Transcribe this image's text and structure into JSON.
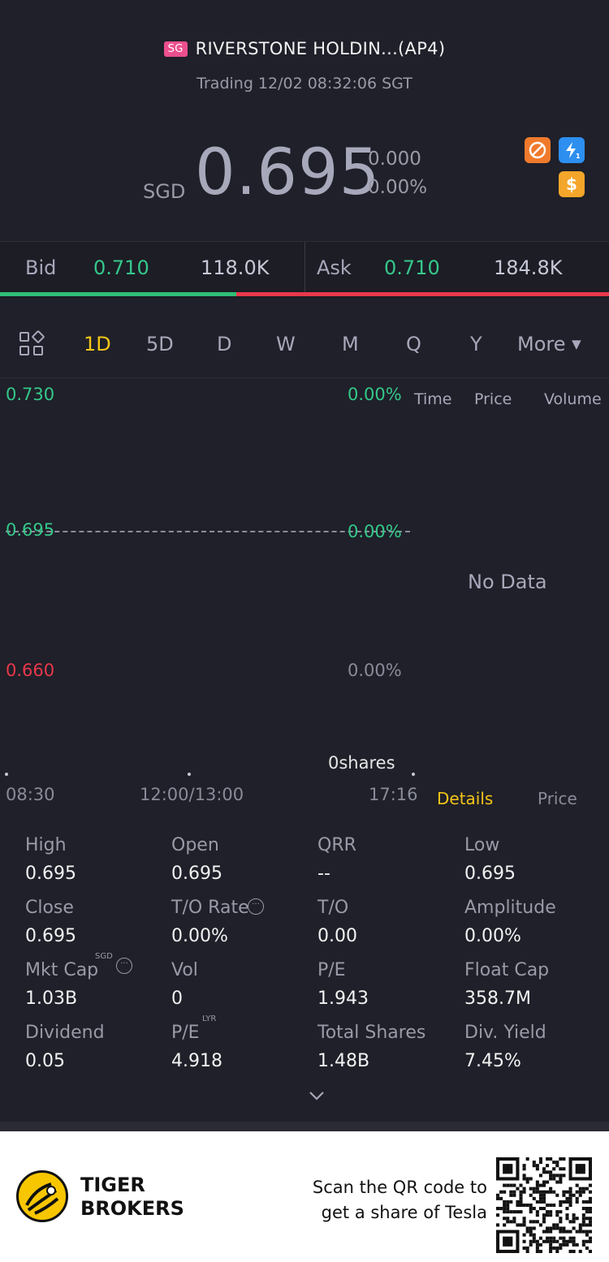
{
  "header": {
    "market_badge": "SG",
    "stock_name": "RIVERSTONE HOLDIN...(AP4)",
    "status": "Trading 12/02 08:32:06 SGT",
    "currency": "SGD",
    "price": "0.695",
    "change": "0.000",
    "change_pct": "0.00%",
    "icon_names": [
      "no-short-icon",
      "lightning-level1-icon",
      "dollar-icon"
    ],
    "colors": {
      "price": "#a7a8ba",
      "up": "#35c88a",
      "down": "#e8384b",
      "accent": "#f5c518"
    }
  },
  "bidask": {
    "bid_label": "Bid",
    "bid_price": "0.710",
    "bid_volume": "118.0K",
    "ask_label": "Ask",
    "ask_price": "0.710",
    "ask_volume": "184.8K",
    "bid_fraction": 0.388
  },
  "tabs": {
    "items": [
      "1D",
      "5D",
      "D",
      "W",
      "M",
      "Q",
      "Y"
    ],
    "active": "1D",
    "more_label": "More"
  },
  "chart": {
    "axis_left": [
      "0.730",
      "0.695",
      "0.660"
    ],
    "axis_right": [
      "0.00%",
      "0.00%",
      "0.00%"
    ],
    "shares_label": "0shares",
    "times": [
      "08:30",
      "12:00/13:00",
      "17:16"
    ]
  },
  "ticks": {
    "headers": [
      "Time",
      "Price",
      "Volume"
    ],
    "empty_text": "No Data",
    "details_tab": "Details",
    "price_tab": "Price"
  },
  "stats": {
    "rows": [
      [
        {
          "label": "High",
          "value": "0.695"
        },
        {
          "label": "Open",
          "value": "0.695"
        },
        {
          "label": "QRR",
          "value": "--"
        },
        {
          "label": "Low",
          "value": "0.695"
        }
      ],
      [
        {
          "label": "Close",
          "value": "0.695"
        },
        {
          "label": "T/O Rate",
          "value": "0.00%"
        },
        {
          "label": "T/O",
          "value": "0.00"
        },
        {
          "label": "Amplitude",
          "value": "0.00%"
        }
      ],
      [
        {
          "label": "Mkt Cap",
          "value": "1.03B"
        },
        {
          "label": "Vol",
          "value": "0"
        },
        {
          "label": "P/E",
          "value": "1.943"
        },
        {
          "label": "Float Cap",
          "value": "358.7M"
        }
      ],
      [
        {
          "label": "Dividend",
          "value": "0.05"
        },
        {
          "label": "P/E",
          "value": "4.918"
        },
        {
          "label": "Total Shares",
          "value": "1.48B"
        },
        {
          "label": "Div. Yield",
          "value": "7.45%"
        }
      ]
    ],
    "mkt_cap_sup": "SGD",
    "pe_sup": "LYR"
  },
  "footer": {
    "brand_line1": "TIGER",
    "brand_line2": "BROKERS",
    "promo_line1": "Scan the QR code to",
    "promo_line2": "get a share of Tesla"
  }
}
